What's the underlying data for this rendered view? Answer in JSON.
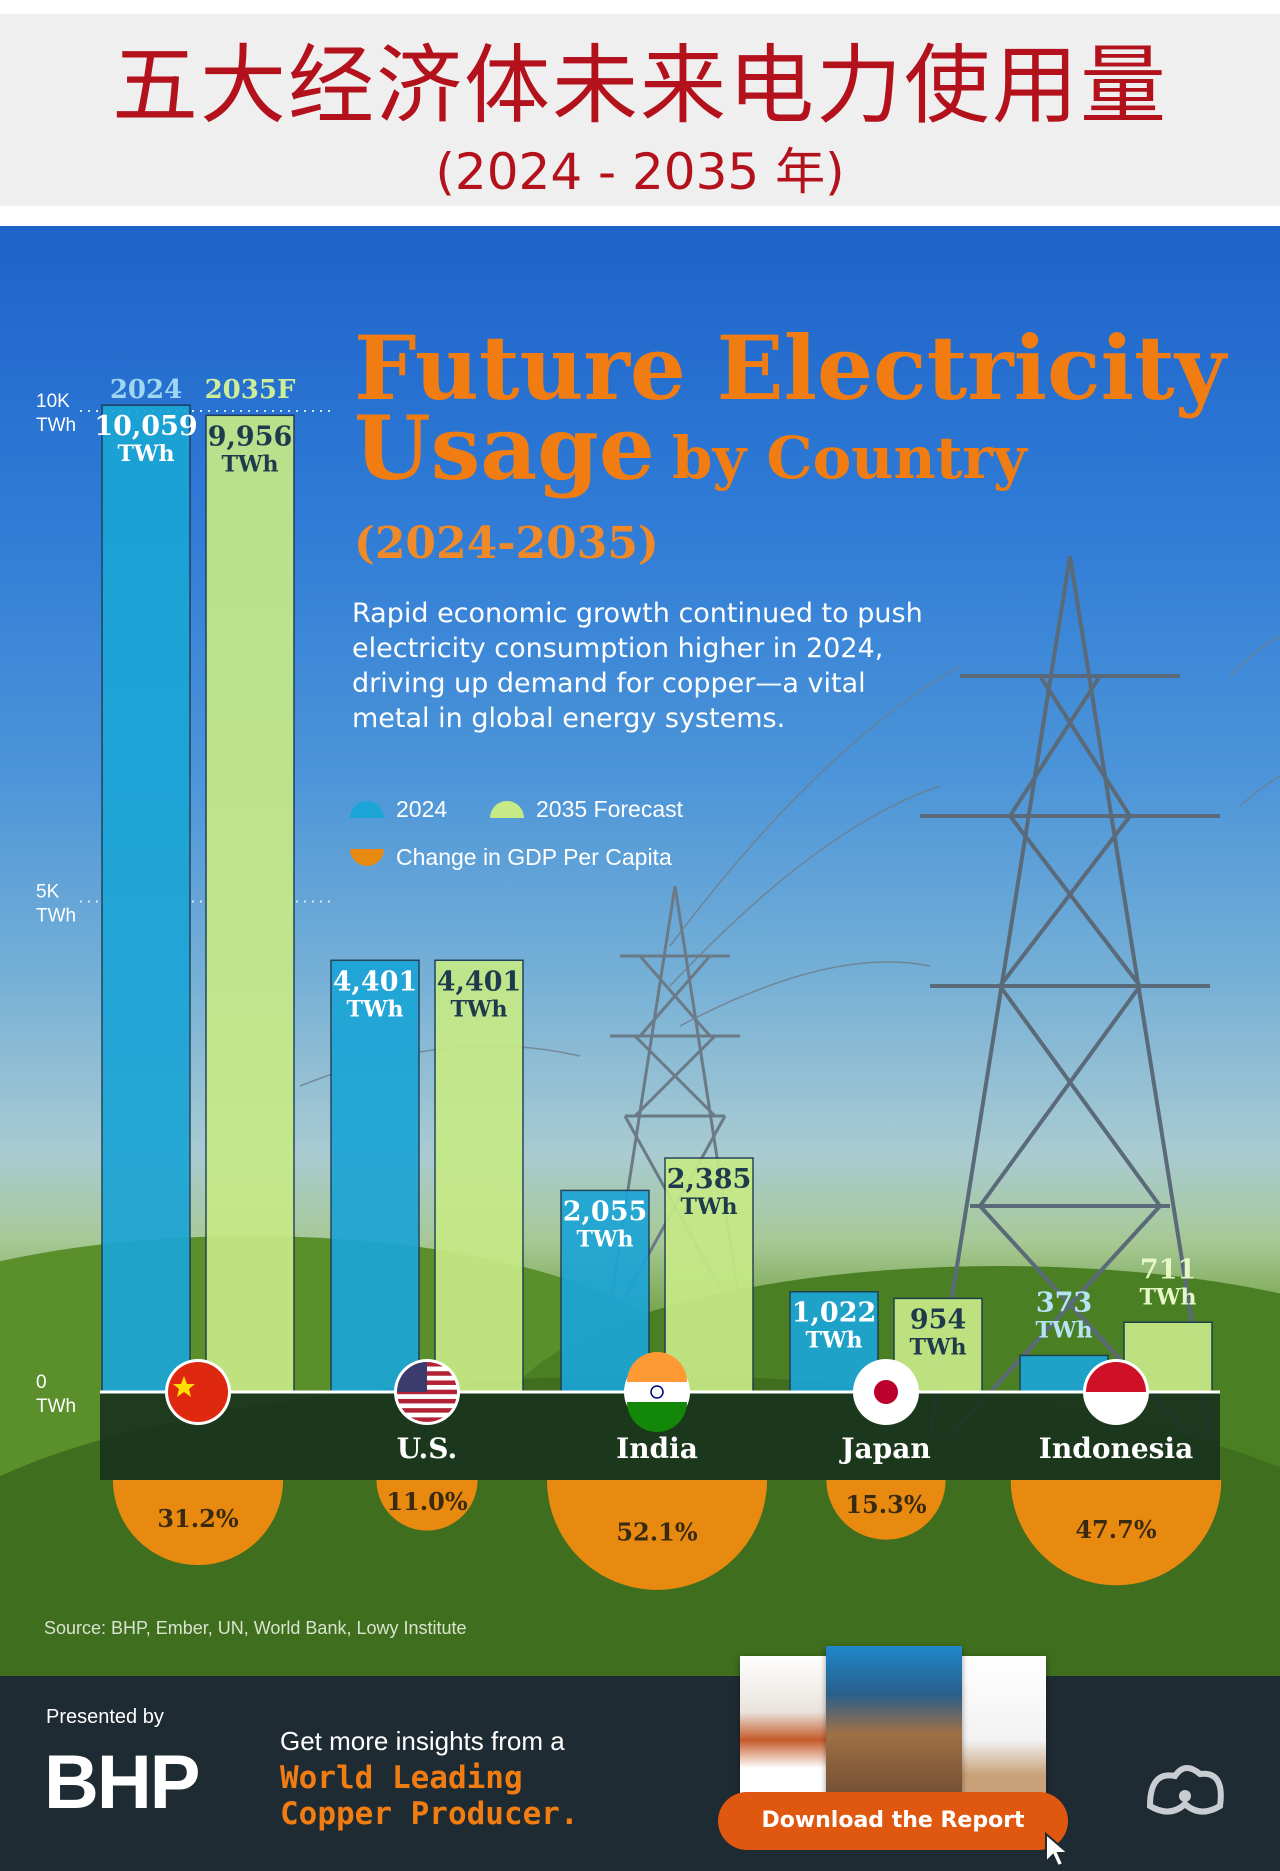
{
  "header": {
    "title": "五大经济体未来电力使用量",
    "subtitle": "(2024 - 2035 年)"
  },
  "infographic": {
    "title_line1": "Future Electricity",
    "title_line2a": "Usage",
    "title_line2b": "by Country",
    "title_line3": "(2024-2035)",
    "description": "Rapid economic growth continued to push electricity consumption higher in 2024, driving up demand for copper—a vital metal in global energy systems.",
    "legend": {
      "item_2024": "2024",
      "item_2035": "2035 Forecast",
      "item_gdp": "Change in GDP Per Capita"
    },
    "source": "Source: BHP, Ember, UN, World Bank, Lowy Institute"
  },
  "chart_data": {
    "type": "bar",
    "title": "Future Electricity Usage by Country (2024-2035)",
    "unit": "TWh",
    "ylim": [
      0,
      10000
    ],
    "y_ticks": [
      {
        "value": 10000,
        "label": "10K",
        "unit": "TWh"
      },
      {
        "value": 5000,
        "label": "5K",
        "unit": "TWh"
      },
      {
        "value": 0,
        "label": "0",
        "unit": "TWh"
      }
    ],
    "column_headers": [
      "2024",
      "2035F"
    ],
    "categories": [
      "China",
      "U.S.",
      "India",
      "Japan",
      "Indonesia"
    ],
    "series": [
      {
        "name": "2024",
        "color": "#1ba5d6",
        "values": [
          10059,
          4401,
          2055,
          1022,
          373
        ],
        "labels": [
          "10,059",
          "4,401",
          "2,055",
          "1,022",
          "373"
        ]
      },
      {
        "name": "2035 Forecast",
        "color": "#c6ea86",
        "values": [
          9956,
          4401,
          2385,
          954,
          711
        ],
        "labels": [
          "9,956",
          "4,401",
          "2,385",
          "954",
          "711"
        ]
      }
    ],
    "gdp_per_capita_change": {
      "name": "Change in GDP Per Capita",
      "color": "#e98a10",
      "values": [
        31.2,
        11.0,
        52.1,
        15.3,
        47.7
      ],
      "labels": [
        "31.2%",
        "11.0%",
        "52.1%",
        "15.3%",
        "47.7%"
      ]
    },
    "country_labels": [
      "",
      "U.S.",
      "India",
      "Japan",
      "Indonesia"
    ]
  },
  "footer": {
    "presented_by": "Presented by",
    "logo_text": "BHP",
    "insight_line1": "Get more insights from a",
    "insight_line2": "World Leading",
    "insight_line3": "Copper Producer.",
    "download_label": "Download the Report"
  },
  "colors": {
    "brand_orange": "#f07c12",
    "header_red": "#b3121c",
    "footer_bg": "#1f2b33"
  }
}
